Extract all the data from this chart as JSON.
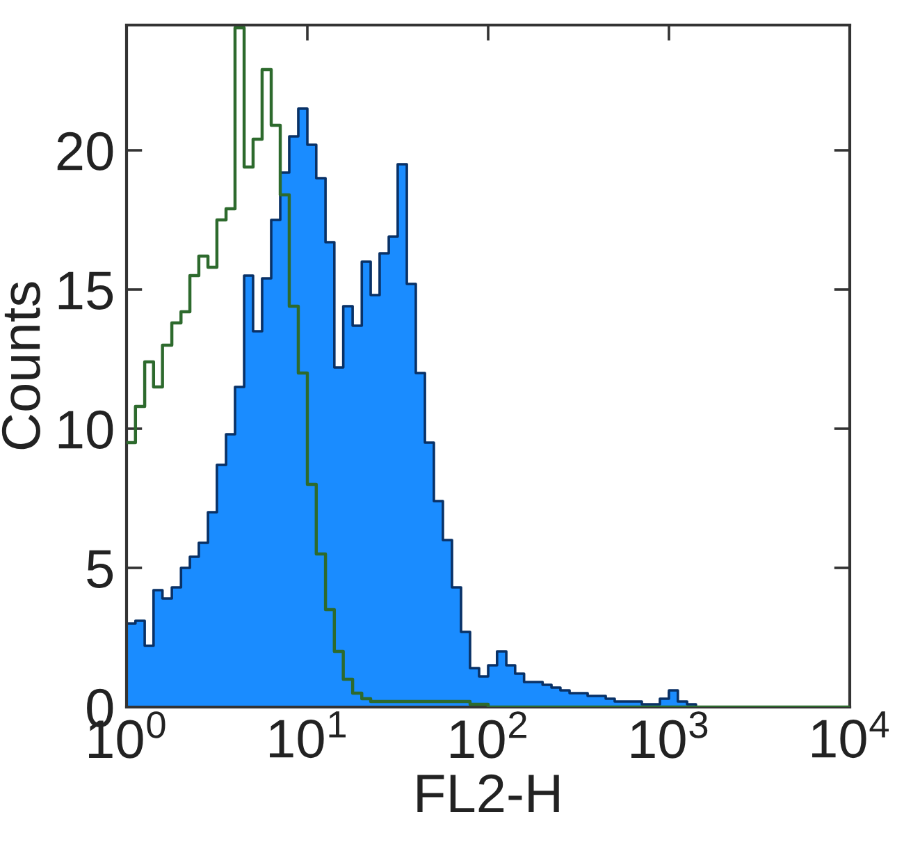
{
  "chart_data": {
    "type": "histogram",
    "xlabel": "FL2-H",
    "ylabel": "Counts",
    "log": "x",
    "xlim": [
      1,
      10000
    ],
    "xticks": [
      {
        "value": 1,
        "label": "10$^{0}$"
      },
      {
        "value": 10,
        "label": "10$^{1}$"
      },
      {
        "value": 100,
        "label": "10$^{2}$"
      },
      {
        "value": 1000,
        "label": "10$^{3}$"
      },
      {
        "value": 10000,
        "label": "10$^{4}$"
      }
    ],
    "ylim": [
      0,
      24.5
    ],
    "yticks": [
      0,
      5,
      10,
      15,
      20
    ],
    "bins": [
      1,
      1.12,
      1.26,
      1.41,
      1.58,
      1.78,
      2,
      2.24,
      2.51,
      2.82,
      3.16,
      3.55,
      3.98,
      4.47,
      5.01,
      5.62,
      6.31,
      7.08,
      7.94,
      8.91,
      10,
      11.2,
      12.6,
      14.1,
      15.8,
      17.8,
      20,
      22.4,
      25.1,
      28.2,
      31.6,
      35.5,
      39.8,
      44.7,
      50.1,
      56.2,
      63.1,
      70.8,
      79.4,
      89.1,
      100,
      112,
      126,
      141,
      158,
      178,
      200,
      224,
      251,
      282,
      316,
      355,
      398,
      447,
      501,
      562,
      631,
      708,
      794,
      891,
      1000,
      1120,
      1260,
      1410,
      1580,
      1780,
      2000,
      2240,
      2510,
      2820,
      3160,
      3550,
      3980,
      4470,
      5010,
      5620,
      6310,
      7080,
      7940,
      8910,
      10000
    ],
    "series": [
      {
        "color": "#1a8cff",
        "values": [
          3.0,
          3.1,
          2.2,
          4.2,
          3.9,
          4.3,
          5.0,
          5.4,
          5.9,
          7.0,
          8.7,
          9.8,
          11.5,
          15.5,
          13.5,
          15.4,
          17.5,
          19.2,
          20.5,
          21.5,
          20.2,
          19.0,
          16.7,
          12.2,
          14.4,
          13.7,
          16.0,
          14.8,
          16.3,
          16.9,
          19.5,
          15.2,
          12.0,
          9.5,
          7.4,
          6.0,
          4.3,
          2.7,
          1.4,
          1.1,
          1.5,
          2.0,
          1.5,
          1.2,
          0.9,
          0.9,
          0.8,
          0.7,
          0.6,
          0.5,
          0.5,
          0.4,
          0.4,
          0.3,
          0.2,
          0.2,
          0.2,
          0.1,
          0.1,
          0.3,
          0.6,
          0.2,
          0.1,
          0,
          0,
          0,
          0,
          0,
          0,
          0,
          0,
          0,
          0,
          0,
          0,
          0,
          0,
          0,
          0,
          0
        ]
      },
      {
        "type": "step",
        "color": "#2d6a2d",
        "x": [
          1,
          1.12,
          1.26,
          1.41,
          1.58,
          1.78,
          2,
          2.24,
          2.51,
          2.82,
          3.16,
          3.55,
          3.98,
          4.47,
          5.01,
          5.62,
          6.31,
          7.08,
          7.94,
          8.91,
          10,
          11.2,
          12.6,
          14.1,
          15.8,
          17.8,
          20,
          22.4,
          25.1,
          28.2,
          31.6,
          35.5,
          39.8,
          44.7,
          50.1,
          56.2,
          63.1,
          70.8,
          79.4,
          89.1,
          100,
          112,
          126,
          141,
          158,
          178,
          200,
          224,
          251,
          282,
          316,
          355,
          398,
          447,
          501,
          562,
          631,
          708,
          794,
          891,
          1000,
          1120,
          1260,
          1410,
          1580,
          1780,
          2000,
          2240,
          2510,
          2820,
          3160,
          3550,
          3980,
          4470,
          5010,
          5620,
          6310,
          7080,
          7940,
          8910,
          10000
        ],
        "values": [
          9.5,
          10.8,
          12.4,
          11.5,
          13.0,
          13.8,
          14.2,
          15.5,
          16.2,
          15.8,
          17.5,
          17.9,
          24.4,
          19.4,
          20.4,
          22.9,
          20.9,
          18.4,
          14.4,
          12.0,
          8.0,
          5.5,
          3.5,
          2.0,
          1.0,
          0.5,
          0.3,
          0.2,
          0.2,
          0.2,
          0.2,
          0.2,
          0.2,
          0.2,
          0.2,
          0.2,
          0.2,
          0.2,
          0.1,
          0.1,
          0,
          0,
          0,
          0,
          0,
          0,
          0,
          0,
          0,
          0,
          0,
          0,
          0,
          0,
          0,
          0,
          0,
          0,
          0,
          0,
          0,
          0,
          0,
          0,
          0,
          0,
          0,
          0,
          0,
          0,
          0,
          0,
          0,
          0,
          0,
          0,
          0,
          0,
          0,
          0,
          0
        ]
      }
    ]
  }
}
